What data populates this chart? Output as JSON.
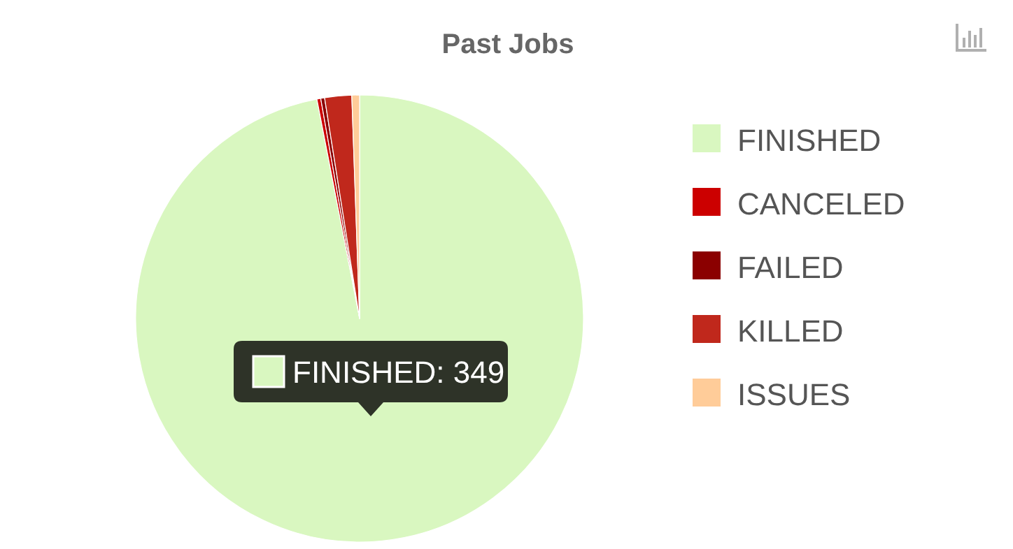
{
  "chart_data": {
    "type": "pie",
    "title": "Past Jobs",
    "categories": [
      "FINISHED",
      "CANCELED",
      "FAILED",
      "KILLED",
      "ISSUES"
    ],
    "values": [
      349,
      1,
      1,
      7,
      2
    ],
    "colors": [
      "#d9f7c0",
      "#cc0000",
      "#8b0000",
      "#c0281c",
      "#ffcc99"
    ],
    "value_labels": [
      "FINISHED: 349",
      null,
      null,
      null,
      null
    ],
    "legend": "right"
  }
}
